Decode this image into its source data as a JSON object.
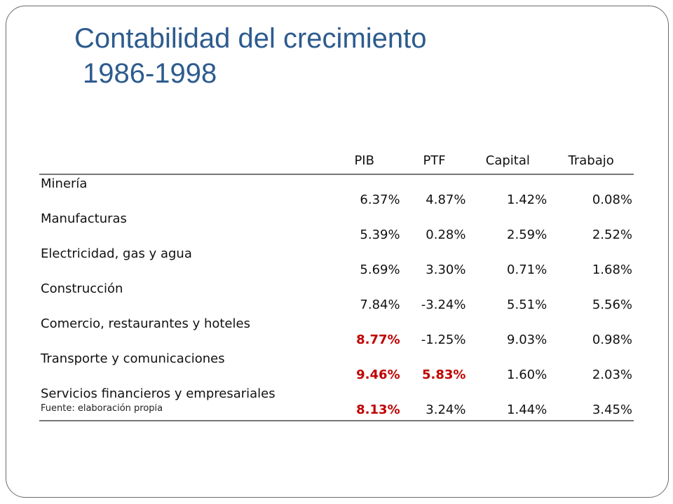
{
  "slide": {
    "title_line1": "Contabilidad del crecimiento",
    "title_line2": "1986-1998",
    "colors": {
      "title": "#2d5b8e",
      "highlight": "#c00000"
    }
  },
  "table": {
    "columns": [
      "",
      "PIB",
      "PTF",
      "Capital",
      "Trabajo"
    ],
    "rows": [
      {
        "label": "Minería",
        "values": [
          "6.37%",
          "4.87%",
          "1.42%",
          "0.08%"
        ],
        "highlight": [
          false,
          false,
          false,
          false
        ]
      },
      {
        "label": "Manufacturas",
        "values": [
          "5.39%",
          "0.28%",
          "2.59%",
          "2.52%"
        ],
        "highlight": [
          false,
          false,
          false,
          false
        ]
      },
      {
        "label": "Electricidad, gas y agua",
        "values": [
          "5.69%",
          "3.30%",
          "0.71%",
          "1.68%"
        ],
        "highlight": [
          false,
          false,
          false,
          false
        ]
      },
      {
        "label": "Construcción",
        "values": [
          "7.84%",
          "-3.24%",
          "5.51%",
          "5.56%"
        ],
        "highlight": [
          false,
          false,
          false,
          false
        ]
      },
      {
        "label": "Comercio, restaurantes y hoteles",
        "values": [
          "8.77%",
          "-1.25%",
          "9.03%",
          "0.98%"
        ],
        "highlight": [
          true,
          false,
          false,
          false
        ]
      },
      {
        "label": "Transporte y comunicaciones",
        "values": [
          "9.46%",
          "5.83%",
          "1.60%",
          "2.03%"
        ],
        "highlight": [
          true,
          true,
          false,
          false
        ]
      },
      {
        "label": "Servicios financieros y empresariales",
        "values": [
          "8.13%",
          "3.24%",
          "1.44%",
          "3.45%"
        ],
        "highlight": [
          true,
          false,
          false,
          false
        ]
      }
    ]
  },
  "source": "Fuente: elaboración propia"
}
